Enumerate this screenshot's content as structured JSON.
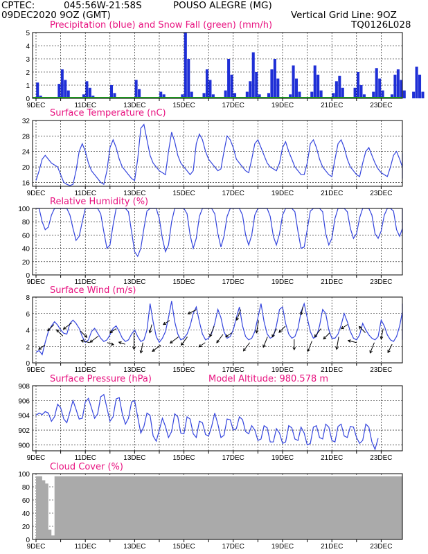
{
  "header": {
    "org": "CPTEC:",
    "coords": "045:56W-21:58S",
    "station": "POUSO ALEGRE (MG)",
    "run": "09DEC2020 9OZ (GMT)",
    "grid_note": "Vertical Grid Line: 9OZ",
    "code": "TQ0126L028"
  },
  "colors": {
    "header": "#f07a0a",
    "title": "#e8117f",
    "line": "#3344dd",
    "precip": "#1f2fd6",
    "snow": "#22aa22",
    "cloud": "#aaaaaa",
    "grid": "#000000"
  },
  "x_labels": [
    "9DEC",
    "11DEC",
    "13DEC",
    "15DEC",
    "17DEC",
    "19DEC",
    "21DEC",
    "23DEC"
  ],
  "panels": {
    "precip": {
      "title": "Precipitation (blue) and Snow Fall (green) (mm/h)"
    },
    "temp": {
      "title": "Surface Temperature (nC)"
    },
    "rh": {
      "title": "Relative Humidity (%)"
    },
    "wind": {
      "title": "Surface Wind (m/s)"
    },
    "pres": {
      "title": "Surface Pressure (hPa)",
      "altitude": "Model Altitude: 980.578 m"
    },
    "cloud": {
      "title": "Cloud Cover (%)"
    }
  },
  "chart_data": [
    {
      "type": "bar",
      "title": "Precipitation (blue) and Snow Fall (green) (mm/h)",
      "ylim": [
        0,
        5
      ],
      "yticks": [
        0,
        1,
        2,
        3,
        4,
        5
      ],
      "x_start": "2020-12-09 09Z",
      "x_step_hours": 3,
      "series": [
        {
          "name": "Precipitation",
          "color": "#1f2fd6",
          "values": [
            1.2,
            0.2,
            0,
            0,
            0,
            0,
            0,
            1.1,
            2.2,
            1.4,
            0.6,
            0,
            0,
            0,
            0,
            0.3,
            1.3,
            0.8,
            0.2,
            0,
            0,
            0,
            0,
            0,
            1.0,
            0.4,
            0,
            0,
            0,
            0,
            0,
            0,
            1.4,
            0.7,
            0,
            0,
            0,
            0,
            0,
            0,
            0.5,
            0.3,
            0,
            0,
            0,
            0,
            0,
            0.3,
            5.0,
            3.0,
            0.5,
            0,
            0,
            0,
            0.4,
            2.2,
            1.4,
            0.3,
            0,
            0,
            0,
            0.6,
            3.0,
            1.8,
            0.4,
            0,
            0,
            0,
            0.5,
            1.3,
            3.5,
            2.0,
            0.3,
            0,
            0,
            0.4,
            2.2,
            3.0,
            1.5,
            0,
            0,
            0,
            0.3,
            2.5,
            1.5,
            0.5,
            0,
            0,
            0,
            0.5,
            2.5,
            1.8,
            0.6,
            0,
            0,
            0,
            0.4,
            1.3,
            1.7,
            0.8,
            0,
            0,
            0,
            0.8,
            2.0,
            1.0,
            0.3,
            0,
            0,
            0.5,
            2.3,
            1.5,
            0.6,
            0,
            0,
            0.3,
            1.8,
            2.2,
            1.4,
            0.6,
            0,
            0,
            0.5,
            2.4,
            1.8,
            0.5,
            0,
            0,
            0.4,
            2.0,
            2.0,
            1.2,
            0.4
          ]
        },
        {
          "name": "Snow Fall",
          "color": "#22aa22",
          "values": [
            0
          ]
        }
      ]
    },
    {
      "type": "line",
      "title": "Surface Temperature (nC)",
      "ylim": [
        15,
        32
      ],
      "yticks": [
        16,
        20,
        24,
        28,
        32
      ],
      "x_start": "2020-12-09 09Z",
      "x_step_hours": 3,
      "series": [
        {
          "name": "Temperature",
          "values": [
            16.5,
            19,
            22,
            23,
            22,
            21,
            20.5,
            20,
            18,
            16,
            15.5,
            15.2,
            15.5,
            19,
            24,
            26,
            24,
            21,
            19,
            18,
            17,
            16,
            15.5,
            19,
            25,
            27,
            25,
            22,
            20,
            19,
            18,
            17,
            16.5,
            22,
            30,
            31,
            27,
            23,
            21,
            20,
            19,
            18.5,
            18,
            24,
            29,
            26.5,
            23,
            21,
            20,
            19,
            18,
            19,
            26,
            28.5,
            27,
            24,
            22,
            21,
            20,
            19,
            19.5,
            24,
            28,
            27,
            25,
            22,
            21,
            20,
            19,
            18.5,
            22,
            26,
            27,
            25,
            23,
            21,
            20,
            19.5,
            19,
            21,
            25,
            26.5,
            24,
            22,
            20,
            19,
            18,
            18,
            21,
            26,
            27,
            25,
            22,
            20,
            19,
            18,
            17.5,
            22,
            26,
            27,
            25,
            22,
            20,
            19,
            18,
            17.5,
            21,
            24,
            25,
            23,
            21,
            19.5,
            18.5,
            18,
            17.5,
            20,
            23,
            24,
            22,
            20,
            18.5,
            18,
            17.5,
            17,
            19,
            23,
            23.5,
            22,
            20,
            18.5,
            18,
            17.5,
            17,
            19,
            21,
            22,
            20
          ]
        }
      ]
    },
    {
      "type": "line",
      "title": "Relative Humidity (%)",
      "ylim": [
        0,
        100
      ],
      "yticks": [
        0,
        20,
        40,
        60,
        80,
        100
      ],
      "x_start": "2020-12-09 09Z",
      "x_step_hours": 3,
      "series": [
        {
          "name": "Relative Humidity",
          "values": [
            100,
            100,
            80,
            68,
            72,
            90,
            100,
            100,
            100,
            100,
            100,
            90,
            70,
            52,
            58,
            80,
            100,
            100,
            100,
            100,
            100,
            92,
            65,
            40,
            45,
            75,
            100,
            100,
            100,
            100,
            95,
            65,
            35,
            28,
            40,
            70,
            96,
            100,
            100,
            100,
            85,
            55,
            35,
            45,
            80,
            100,
            100,
            100,
            100,
            92,
            60,
            40,
            55,
            88,
            100,
            100,
            100,
            100,
            92,
            62,
            42,
            58,
            88,
            100,
            100,
            100,
            100,
            90,
            60,
            45,
            60,
            90,
            100,
            100,
            100,
            100,
            88,
            58,
            45,
            62,
            90,
            100,
            100,
            100,
            95,
            65,
            40,
            42,
            68,
            96,
            100,
            100,
            100,
            95,
            62,
            45,
            55,
            85,
            100,
            100,
            100,
            95,
            70,
            55,
            62,
            86,
            100,
            100,
            100,
            90,
            62,
            55,
            66,
            90,
            100,
            100,
            96,
            68,
            58,
            70,
            92,
            100,
            100,
            95,
            70,
            62,
            78,
            96,
            100,
            100,
            95,
            80,
            88,
            100,
            100
          ]
        }
      ]
    },
    {
      "type": "line",
      "title": "Surface Wind (m/s)",
      "ylim": [
        0,
        8
      ],
      "yticks": [
        0,
        2,
        4,
        6,
        8
      ],
      "x_start": "2020-12-09 09Z",
      "x_step_hours": 3,
      "series": [
        {
          "name": "Wind speed",
          "values": [
            1.3,
            1.5,
            1,
            2.5,
            3.8,
            4.5,
            5,
            4.6,
            4,
            3.6,
            3.5,
            4.8,
            5.2,
            4.8,
            4.2,
            3.2,
            2.5,
            2.8,
            3.8,
            4.2,
            3.6,
            3,
            2.6,
            2.8,
            3.4,
            4.2,
            4.5,
            3.8,
            3,
            2.6,
            2.8,
            3.5,
            4,
            3.2,
            2.6,
            2.8,
            4,
            7.2,
            5,
            3.2,
            2.5,
            3,
            3.8,
            5.5,
            7.5,
            5,
            3.5,
            2.8,
            3,
            3.5,
            4.5,
            6,
            6.8,
            5,
            3.5,
            2.8,
            3,
            3.6,
            4.8,
            6.5,
            5.5,
            3.8,
            3,
            3.2,
            4,
            5.5,
            6.8,
            4.5,
            3.2,
            2.8,
            3,
            3.8,
            5.5,
            7.2,
            5,
            3.5,
            3,
            3.2,
            4.5,
            6.5,
            6.8,
            4.8,
            3.5,
            3,
            3.2,
            4.2,
            6.2,
            7.2,
            5.5,
            3.8,
            3,
            3.2,
            4.5,
            6.5,
            6,
            4,
            3,
            3,
            3.5,
            4.6,
            6,
            5,
            3.8,
            3,
            2.8,
            3.4,
            4.8,
            4,
            3.4,
            3,
            2.8,
            3.2,
            5.2,
            4.5,
            3.4,
            2.8,
            2.6,
            3.2,
            4.5,
            6.2,
            6.5,
            4.8,
            3.6,
            3.2,
            3.6,
            6,
            7.2,
            5.2,
            3.4,
            2.8,
            3,
            3.6,
            5.5,
            4,
            2.8,
            3
          ]
        }
      ],
      "vectors": {
        "note": "wind vectors drawn as arrows; directions estimated",
        "values": [
          [
            -3,
            -2
          ],
          [
            -3,
            -3
          ],
          [
            -3,
            3
          ],
          [
            -4,
            -3
          ],
          [
            3,
            -3
          ],
          [
            -4,
            1
          ],
          [
            -4,
            -3
          ],
          [
            3,
            -1
          ],
          [
            -3,
            -2
          ],
          [
            -3,
            1
          ],
          [
            0,
            -8
          ],
          [
            -1,
            -5
          ],
          [
            -1,
            -4
          ],
          [
            -4,
            -3
          ],
          [
            -3,
            -2
          ],
          [
            -4,
            -3
          ],
          [
            -3,
            -4
          ],
          [
            -4,
            -2
          ],
          [
            -3,
            -2
          ],
          [
            -2,
            -5
          ],
          [
            -3,
            -4
          ],
          [
            -3,
            -2
          ],
          [
            -2,
            -5
          ],
          [
            -3,
            -4
          ],
          [
            -1,
            -6
          ],
          [
            -2,
            -5
          ],
          [
            -2,
            -4
          ],
          [
            -3,
            -3
          ],
          [
            0,
            -5
          ],
          [
            -1,
            -4
          ],
          [
            -2,
            -5
          ],
          [
            -3,
            -4
          ],
          [
            -3,
            -3
          ],
          [
            -1,
            -6
          ],
          [
            -3,
            -2
          ],
          [
            -4,
            1
          ],
          [
            -3,
            3
          ],
          [
            -2,
            -5
          ],
          [
            -1,
            -5
          ],
          [
            -2,
            -4
          ]
        ]
      }
    },
    {
      "type": "line",
      "title": "Surface Pressure (hPa)",
      "ylim": [
        899.2,
        908
      ],
      "yticks": [
        900,
        902,
        904,
        906,
        908
      ],
      "x_start": "2020-12-09 09Z",
      "x_step_hours": 3,
      "series": [
        {
          "name": "Surface Pressure",
          "values": [
            904,
            904.3,
            904.1,
            904.5,
            904.3,
            903.2,
            903.8,
            905.5,
            905,
            903.5,
            903,
            904.5,
            906,
            904.8,
            903.5,
            903.6,
            905.8,
            906.3,
            905,
            903.6,
            904.2,
            906.5,
            906.8,
            905,
            903.2,
            903.8,
            906.2,
            906.4,
            904.2,
            902.8,
            903.6,
            905.8,
            906,
            903.8,
            901.6,
            902.5,
            904.3,
            904,
            901.2,
            900.5,
            902,
            903.6,
            902.5,
            901,
            901.8,
            904.2,
            903.8,
            901.6,
            901.5,
            903.8,
            903.5,
            901.5,
            901,
            903.2,
            903,
            901.4,
            901.2,
            902.5,
            904.3,
            902.8,
            901,
            901.3,
            903.5,
            903.4,
            902,
            902.2,
            903.8,
            903.4,
            901.8,
            901.5,
            902.6,
            902,
            900.6,
            900.8,
            902.6,
            902.3,
            900.4,
            900.4,
            902.2,
            901.6,
            900.2,
            900.4,
            902.6,
            902.3,
            900.8,
            900.6,
            902.4,
            901.6,
            900,
            900.2,
            902.4,
            902.6,
            901,
            900.8,
            902.8,
            902.4,
            900.6,
            900.4,
            902.5,
            902.8,
            901.2,
            901,
            902.5,
            902.4,
            901,
            900.2,
            900.6,
            902.8,
            902.4,
            900.4,
            899.4,
            900.9
          ]
        }
      ]
    },
    {
      "type": "area",
      "title": "Cloud Cover (%)",
      "ylim": [
        0,
        100
      ],
      "yticks": [
        0,
        20,
        40,
        60,
        80,
        100
      ],
      "x_start": "2020-12-09 09Z",
      "x_step_hours": 3,
      "series": [
        {
          "name": "Cloud Cover",
          "values": [
            96,
            96,
            90,
            85,
            15,
            6,
            96,
            96,
            96,
            96,
            96,
            96,
            96,
            96,
            96,
            96,
            96,
            96,
            96,
            96,
            96,
            96,
            96,
            96,
            96,
            96,
            96,
            96,
            96,
            96,
            96,
            96,
            96,
            96,
            96,
            96,
            96,
            96,
            96,
            96,
            96,
            96,
            96,
            96,
            96,
            96,
            96,
            96,
            96,
            96,
            96,
            96,
            96,
            96,
            96,
            96,
            96,
            96,
            96,
            96,
            96,
            96,
            96,
            96,
            96,
            96,
            96,
            96,
            96,
            96,
            96,
            96,
            96,
            96,
            96,
            96,
            96,
            96,
            96,
            96,
            96,
            96,
            96,
            96,
            96,
            96,
            96,
            96,
            96,
            96,
            96,
            96,
            96,
            96,
            96,
            96,
            96,
            96,
            96,
            96,
            96,
            96,
            96,
            96,
            96,
            96,
            96,
            96,
            96,
            96,
            96,
            96,
            96,
            96,
            96,
            96,
            96,
            96,
            96,
            96,
            96,
            96,
            96,
            96,
            96,
            96,
            96,
            96,
            96,
            96,
            96,
            96,
            96,
            96,
            96,
            96,
            96,
            96,
            96,
            96
          ]
        }
      ]
    }
  ]
}
